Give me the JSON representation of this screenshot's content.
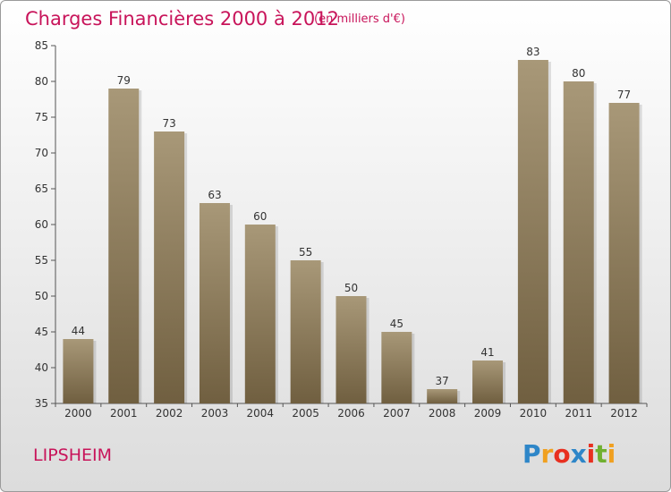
{
  "chart_data": {
    "type": "bar",
    "title": "Charges Financières 2000 à 2012",
    "subtitle": "(en milliers d'€)",
    "categories": [
      "2000",
      "2001",
      "2002",
      "2003",
      "2004",
      "2005",
      "2006",
      "2007",
      "2008",
      "2009",
      "2010",
      "2011",
      "2012"
    ],
    "values": [
      44,
      79,
      73,
      63,
      60,
      55,
      50,
      45,
      37,
      41,
      83,
      80,
      77
    ],
    "ylim": [
      35,
      85
    ],
    "yticks": [
      35,
      40,
      45,
      50,
      55,
      60,
      65,
      70,
      75,
      80,
      85
    ],
    "grid": false,
    "bar_color_top": "#a89878",
    "bar_color_bottom": "#705f40"
  },
  "place_name": "LIPSHEIM",
  "logo": {
    "text": "Proxiti",
    "letters": [
      "P",
      "r",
      "o",
      "x",
      "i",
      "t",
      "i"
    ],
    "colors": [
      "#2e86c8",
      "#f0a020",
      "#e83020",
      "#2e86c8",
      "#e83020",
      "#70b030",
      "#f0a020"
    ]
  }
}
